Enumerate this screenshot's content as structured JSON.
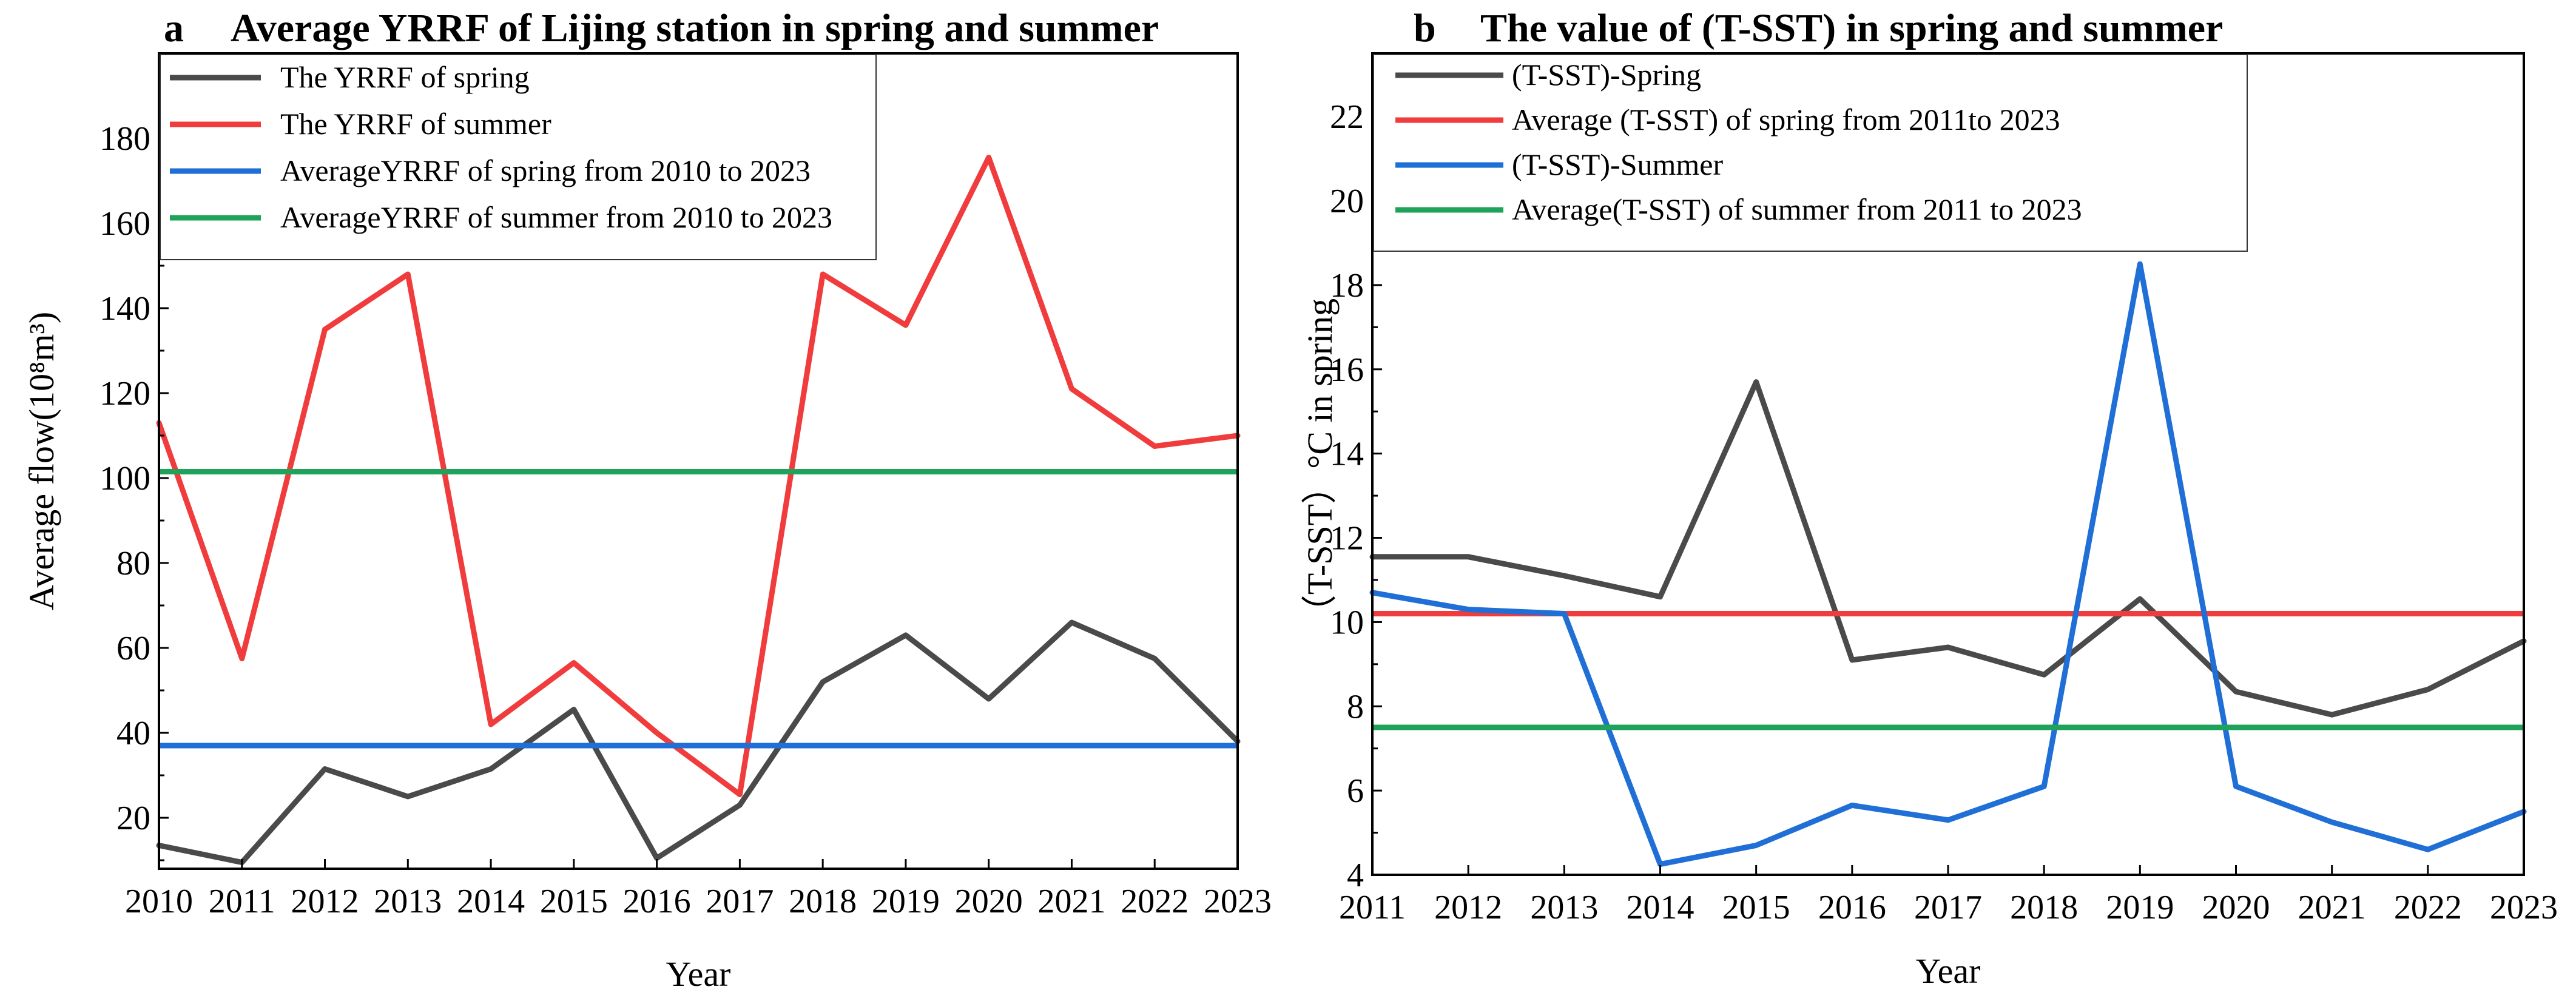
{
  "chart_data": [
    {
      "type": "line",
      "panel_letter": "a",
      "title": "Average YRRF of Lijing station in spring and summer",
      "xlabel": "Year",
      "ylabel": "Average flow(10⁸m³)",
      "x": [
        2010,
        2011,
        2012,
        2013,
        2014,
        2015,
        2016,
        2017,
        2018,
        2019,
        2020,
        2021,
        2022,
        2023
      ],
      "xlim": [
        2010,
        2023
      ],
      "ylim": [
        8,
        200
      ],
      "yticks": [
        20,
        40,
        60,
        80,
        100,
        120,
        140,
        160,
        180
      ],
      "legend_position": "top-left",
      "series": [
        {
          "name": "The YRRF of spring",
          "color": "#4a4a4a",
          "values": [
            13.5,
            9.5,
            31.5,
            25,
            31.5,
            45.5,
            10.5,
            23,
            52,
            63,
            48,
            66,
            57.5,
            38
          ]
        },
        {
          "name": "The YRRF of summer",
          "color": "#f03c3c",
          "values": [
            113,
            57.5,
            135,
            148,
            42,
            56.5,
            40,
            25.5,
            148,
            136,
            175.5,
            121,
            107.5,
            110
          ]
        },
        {
          "name": "AverageYRRF of spring from 2010 to 2023",
          "color": "#1f6fd6",
          "constant": 37
        },
        {
          "name": "AverageYRRF of summer from 2010 to 2023",
          "color": "#1fa35a",
          "constant": 101.5
        }
      ]
    },
    {
      "type": "line",
      "panel_letter": "b",
      "title": "The value of (T-SST) in spring and summer",
      "xlabel": "Year",
      "ylabel": "（T-SST）°C in spring",
      "x": [
        2011,
        2012,
        2013,
        2014,
        2015,
        2016,
        2017,
        2018,
        2019,
        2020,
        2021,
        2022,
        2023
      ],
      "xlim": [
        2011,
        2023
      ],
      "ylim": [
        4,
        23.5
      ],
      "yticks": [
        4,
        6,
        8,
        10,
        12,
        14,
        16,
        18,
        20,
        22
      ],
      "legend_position": "top-left",
      "series": [
        {
          "name": "(T-SST)-Spring",
          "color": "#4a4a4a",
          "values": [
            11.55,
            11.55,
            11.1,
            10.6,
            15.7,
            9.1,
            9.4,
            8.75,
            10.55,
            8.35,
            7.8,
            8.4,
            9.55
          ]
        },
        {
          "name": "Average (T-SST) of spring from 2011to 2023",
          "color": "#f03c3c",
          "constant": 10.2
        },
        {
          "name": "(T-SST)-Summer",
          "color": "#1f6fd6",
          "values": [
            10.7,
            10.3,
            10.2,
            4.25,
            4.7,
            5.65,
            5.3,
            6.1,
            18.5,
            6.1,
            5.25,
            4.6,
            5.5
          ]
        },
        {
          "name": "Average(T-SST) of summer from 2011 to 2023",
          "color": "#1fa35a",
          "constant": 7.5
        }
      ]
    }
  ]
}
